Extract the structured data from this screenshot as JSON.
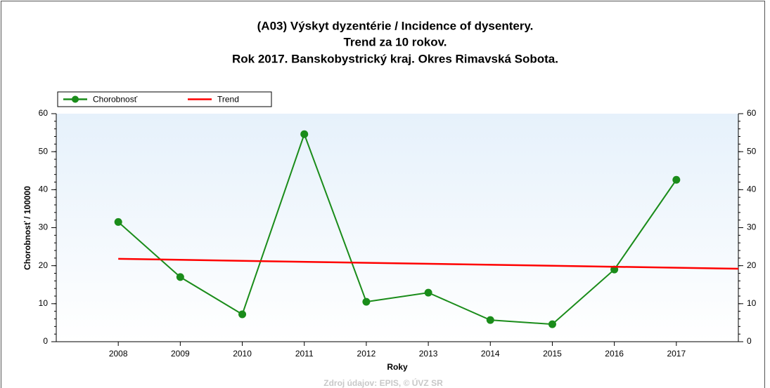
{
  "chart_data": {
    "type": "line",
    "title": [
      "(A03) Výskyt dyzentérie / Incidence of dysentery.",
      "Trend za 10 rokov.",
      "Rok 2017. Banskobystrický kraj. Okres Rimavská Sobota."
    ],
    "x_label": "Roky",
    "y_label": "Chorobnosť / 100000",
    "x": [
      2008,
      2009,
      2010,
      2011,
      2012,
      2013,
      2014,
      2015,
      2016,
      2017
    ],
    "series": [
      {
        "name": "Chorobnosť",
        "color": "#1a8c1a",
        "values": [
          31.5,
          17.0,
          7.2,
          54.6,
          10.5,
          12.9,
          5.7,
          4.6,
          19.0,
          42.6
        ]
      },
      {
        "name": "Trend",
        "color": "#ff0000",
        "x": [
          2008,
          2018
        ],
        "values": [
          21.8,
          19.2
        ]
      }
    ],
    "xlim": [
      2007,
      2018
    ],
    "xticks": [
      2008,
      2009,
      2010,
      2011,
      2012,
      2013,
      2014,
      2015,
      2016,
      2017
    ],
    "ylim": [
      0,
      60
    ],
    "yticks": [
      0,
      10,
      20,
      30,
      40,
      50,
      60
    ],
    "legend": "top-left",
    "source": "Zdroj údajov: EPIS, © ÚVZ SR"
  }
}
